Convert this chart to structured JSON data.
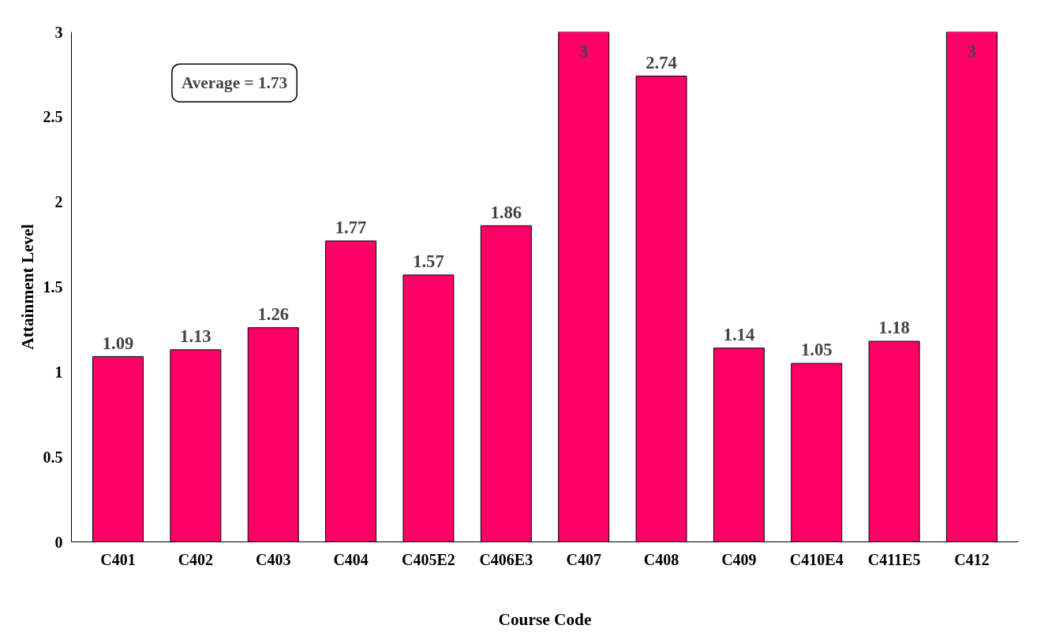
{
  "chart_data": {
    "type": "bar",
    "xlabel": "Course Code",
    "ylabel": "Attainment Level",
    "categories": [
      "C401",
      "C402",
      "C403",
      "C404",
      "C405E2",
      "C406E3",
      "C407",
      "C408",
      "C409",
      "C410E4",
      "C411E5",
      "C412"
    ],
    "values": [
      1.09,
      1.13,
      1.26,
      1.77,
      1.57,
      1.86,
      3,
      2.74,
      1.14,
      1.05,
      1.18,
      3
    ],
    "color": "#ff0066",
    "ylim": [
      0,
      3
    ],
    "yticks": [
      0,
      0.5,
      1,
      1.5,
      2,
      2.5,
      3
    ],
    "grid": false,
    "data_labels": true,
    "annotations": [
      "Average = 1.73"
    ]
  }
}
